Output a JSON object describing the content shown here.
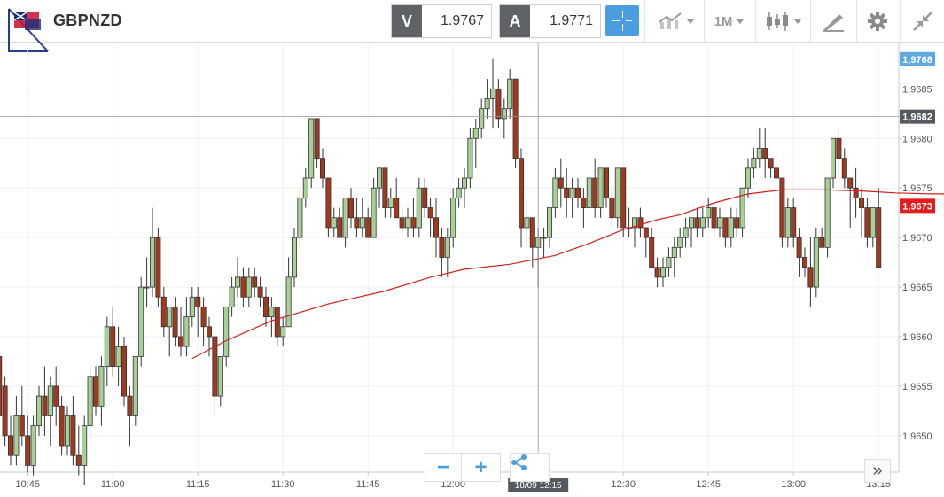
{
  "header": {
    "symbol": "GBPNZD",
    "sell": {
      "tag": "V",
      "price": "1.9767"
    },
    "buy": {
      "tag": "A",
      "price": "1.9771"
    },
    "timeframe": "1M",
    "icons": {
      "chart_type": "line-chart-icon",
      "candles": "candlestick-icon",
      "draw": "pencil-ruler-icon",
      "settings": "gear-icon",
      "collapse": "collapse-arrows-icon",
      "crosshair": "crosshair-icon"
    },
    "accent": "#4a9ee0"
  },
  "controls": {
    "zoom_out": "−",
    "zoom_in": "+",
    "share": "share-icon",
    "more": "»"
  },
  "chart_data": {
    "type": "candlestick",
    "x_ticks": [
      "10:45",
      "11:00",
      "11:15",
      "11:30",
      "11:45",
      "12:00",
      "12:15",
      "12:30",
      "12:45",
      "13:00",
      "13:15"
    ],
    "y_ticks": [
      "1,9685",
      "1,9680",
      "1,9675",
      "1,9670",
      "1,9665",
      "1,9660",
      "1,9655",
      "1,9650"
    ],
    "ylim": [
      1.96465,
      1.96895
    ],
    "bar_minutes": 1,
    "x_start": "10:40",
    "up_color": "#a8cf97",
    "down_color": "#a0391f",
    "ma_color": "#d0201e",
    "crosshair": {
      "time_label": "18/09 12:15",
      "price_label": "1,9682",
      "price": 1.96822,
      "time": "12:15"
    },
    "markers": [
      {
        "label": "1,9768",
        "price": 1.9688,
        "color": "#5fa8e0"
      },
      {
        "label": "1,9673",
        "price": 1.96732,
        "color": "#e01e1e"
      }
    ],
    "candles": [
      [
        1.9658,
        1.9658,
        1.9652,
        1.9652
      ],
      [
        1.9655,
        1.9656,
        1.9649,
        1.965
      ],
      [
        1.965,
        1.9652,
        1.9647,
        1.9648
      ],
      [
        1.9648,
        1.9654,
        1.9647,
        1.9652
      ],
      [
        1.9652,
        1.9655,
        1.9649,
        1.965
      ],
      [
        1.965,
        1.9652,
        1.9646,
        1.9647
      ],
      [
        1.9647,
        1.9652,
        1.9646,
        1.9651
      ],
      [
        1.9651,
        1.9655,
        1.965,
        1.9654
      ],
      [
        1.9654,
        1.9657,
        1.965,
        1.9652
      ],
      [
        1.9652,
        1.9656,
        1.9649,
        1.9655
      ],
      [
        1.9655,
        1.9657,
        1.9651,
        1.9653
      ],
      [
        1.9653,
        1.9654,
        1.9648,
        1.9649
      ],
      [
        1.9649,
        1.9653,
        1.9648,
        1.9652
      ],
      [
        1.9652,
        1.9654,
        1.9647,
        1.9648
      ],
      [
        1.9648,
        1.9651,
        1.9646,
        1.9647
      ],
      [
        1.9647,
        1.9652,
        1.9645,
        1.9651
      ],
      [
        1.9651,
        1.9657,
        1.965,
        1.9656
      ],
      [
        1.9656,
        1.9657,
        1.9652,
        1.9653
      ],
      [
        1.9653,
        1.9658,
        1.9651,
        1.9657
      ],
      [
        1.9657,
        1.9662,
        1.9655,
        1.9661
      ],
      [
        1.9661,
        1.9663,
        1.9656,
        1.9657
      ],
      [
        1.9657,
        1.9661,
        1.9655,
        1.9659
      ],
      [
        1.9659,
        1.966,
        1.9653,
        1.9654
      ],
      [
        1.9654,
        1.9655,
        1.9649,
        1.9652
      ],
      [
        1.9652,
        1.9658,
        1.9651,
        1.9658
      ],
      [
        1.9658,
        1.9666,
        1.9657,
        1.9665
      ],
      [
        1.9665,
        1.9668,
        1.9663,
        1.9665
      ],
      [
        1.9665,
        1.9673,
        1.9664,
        1.967
      ],
      [
        1.967,
        1.9671,
        1.9663,
        1.9664
      ],
      [
        1.9664,
        1.9665,
        1.966,
        1.9661
      ],
      [
        1.9661,
        1.9663,
        1.9658,
        1.9663
      ],
      [
        1.9663,
        1.9664,
        1.9659,
        1.966
      ],
      [
        1.966,
        1.9663,
        1.9658,
        1.9659
      ],
      [
        1.9659,
        1.9664,
        1.9658,
        1.9662
      ],
      [
        1.9662,
        1.9665,
        1.9661,
        1.9664
      ],
      [
        1.9664,
        1.9665,
        1.966,
        1.9663
      ],
      [
        1.9663,
        1.9664,
        1.9659,
        1.9661
      ],
      [
        1.9661,
        1.9662,
        1.9658,
        1.966
      ],
      [
        1.966,
        1.966,
        1.9652,
        1.9654
      ],
      [
        1.9654,
        1.9658,
        1.9653,
        1.9658
      ],
      [
        1.9658,
        1.9663,
        1.9657,
        1.9663
      ],
      [
        1.9663,
        1.9666,
        1.9662,
        1.9665
      ],
      [
        1.9665,
        1.9668,
        1.9664,
        1.9666
      ],
      [
        1.9666,
        1.9667,
        1.9663,
        1.9664
      ],
      [
        1.9664,
        1.9667,
        1.9663,
        1.9666
      ],
      [
        1.9666,
        1.9667,
        1.9664,
        1.9665
      ],
      [
        1.9665,
        1.9666,
        1.9663,
        1.9664
      ],
      [
        1.9664,
        1.9665,
        1.9661,
        1.9662
      ],
      [
        1.9662,
        1.9664,
        1.966,
        1.9663
      ],
      [
        1.9663,
        1.9663,
        1.9659,
        1.966
      ],
      [
        1.966,
        1.9662,
        1.9659,
        1.9661
      ],
      [
        1.9661,
        1.9668,
        1.9661,
        1.9666
      ],
      [
        1.9666,
        1.9671,
        1.9665,
        1.967
      ],
      [
        1.967,
        1.9675,
        1.9669,
        1.9674
      ],
      [
        1.9674,
        1.9677,
        1.9673,
        1.9676
      ],
      [
        1.9676,
        1.9682,
        1.9675,
        1.9682
      ],
      [
        1.9682,
        1.9682,
        1.9677,
        1.9678
      ],
      [
        1.9678,
        1.9679,
        1.9675,
        1.9676
      ],
      [
        1.9676,
        1.9676,
        1.967,
        1.9671
      ],
      [
        1.9671,
        1.9673,
        1.967,
        1.9672
      ],
      [
        1.9672,
        1.9673,
        1.967,
        1.967
      ],
      [
        1.967,
        1.9674,
        1.9669,
        1.9674
      ],
      [
        1.9674,
        1.9675,
        1.9671,
        1.9672
      ],
      [
        1.9672,
        1.9674,
        1.967,
        1.9671
      ],
      [
        1.9671,
        1.9674,
        1.967,
        1.9672
      ],
      [
        1.9672,
        1.9673,
        1.967,
        1.967
      ],
      [
        1.967,
        1.9676,
        1.967,
        1.9675
      ],
      [
        1.9675,
        1.9677,
        1.9673,
        1.9677
      ],
      [
        1.9677,
        1.9677,
        1.9672,
        1.9673
      ],
      [
        1.9673,
        1.9675,
        1.9672,
        1.9674
      ],
      [
        1.9674,
        1.9676,
        1.9672,
        1.9672
      ],
      [
        1.9672,
        1.9673,
        1.967,
        1.9671
      ],
      [
        1.9671,
        1.9673,
        1.967,
        1.9672
      ],
      [
        1.9672,
        1.9674,
        1.967,
        1.9671
      ],
      [
        1.9671,
        1.9676,
        1.967,
        1.9675
      ],
      [
        1.9675,
        1.9676,
        1.9672,
        1.9673
      ],
      [
        1.9673,
        1.9674,
        1.967,
        1.9672
      ],
      [
        1.9672,
        1.9674,
        1.9668,
        1.967
      ],
      [
        1.967,
        1.9671,
        1.9666,
        1.9668
      ],
      [
        1.9668,
        1.9671,
        1.9666,
        1.967
      ],
      [
        1.967,
        1.9675,
        1.9669,
        1.9674
      ],
      [
        1.9674,
        1.9676,
        1.9673,
        1.9675
      ],
      [
        1.9675,
        1.9677,
        1.9673,
        1.9676
      ],
      [
        1.9676,
        1.9681,
        1.9675,
        1.968
      ],
      [
        1.968,
        1.9682,
        1.9677,
        1.9681
      ],
      [
        1.9681,
        1.9684,
        1.968,
        1.9683
      ],
      [
        1.9683,
        1.9686,
        1.9682,
        1.9684
      ],
      [
        1.9684,
        1.9688,
        1.9681,
        1.9685
      ],
      [
        1.9685,
        1.9686,
        1.9681,
        1.9682
      ],
      [
        1.9682,
        1.9684,
        1.968,
        1.9683
      ],
      [
        1.9683,
        1.9687,
        1.9682,
        1.9686
      ],
      [
        1.9686,
        1.9686,
        1.9677,
        1.9678
      ],
      [
        1.9678,
        1.9679,
        1.9669,
        1.9671
      ],
      [
        1.9671,
        1.9674,
        1.9669,
        1.9672
      ],
      [
        1.9672,
        1.9672,
        1.9667,
        1.9669
      ],
      [
        1.9669,
        1.9671,
        1.9665,
        1.967
      ],
      [
        1.967,
        1.9671,
        1.9668,
        1.967
      ],
      [
        1.967,
        1.9673,
        1.9669,
        1.9673
      ],
      [
        1.9673,
        1.9677,
        1.9672,
        1.9676
      ],
      [
        1.9676,
        1.9678,
        1.9673,
        1.9675
      ],
      [
        1.9675,
        1.9677,
        1.9672,
        1.9674
      ],
      [
        1.9674,
        1.9676,
        1.9672,
        1.9675
      ],
      [
        1.9675,
        1.9676,
        1.9673,
        1.9674
      ],
      [
        1.9674,
        1.9675,
        1.9671,
        1.9673
      ],
      [
        1.9673,
        1.9676,
        1.9673,
        1.9676
      ],
      [
        1.9676,
        1.9678,
        1.9672,
        1.9673
      ],
      [
        1.9673,
        1.9677,
        1.9672,
        1.9677
      ],
      [
        1.9677,
        1.9677,
        1.9673,
        1.9674
      ],
      [
        1.9674,
        1.9675,
        1.9671,
        1.9672
      ],
      [
        1.9672,
        1.9677,
        1.9671,
        1.9677
      ],
      [
        1.9677,
        1.9677,
        1.967,
        1.9671
      ],
      [
        1.9671,
        1.9673,
        1.967,
        1.9671
      ],
      [
        1.9671,
        1.9672,
        1.9669,
        1.9672
      ],
      [
        1.9672,
        1.9673,
        1.967,
        1.9671
      ],
      [
        1.9671,
        1.9671,
        1.9668,
        1.967
      ],
      [
        1.967,
        1.9671,
        1.9667,
        1.9667
      ],
      [
        1.9667,
        1.9668,
        1.9665,
        1.9666
      ],
      [
        1.9666,
        1.9668,
        1.9665,
        1.9667
      ],
      [
        1.9667,
        1.9669,
        1.9666,
        1.9668
      ],
      [
        1.9668,
        1.967,
        1.9666,
        1.9669
      ],
      [
        1.9669,
        1.9671,
        1.9668,
        1.967
      ],
      [
        1.967,
        1.9672,
        1.9669,
        1.9671
      ],
      [
        1.9671,
        1.9672,
        1.9669,
        1.9672
      ],
      [
        1.9672,
        1.9673,
        1.967,
        1.9671
      ],
      [
        1.9671,
        1.9673,
        1.967,
        1.9672
      ],
      [
        1.9672,
        1.9674,
        1.9671,
        1.9673
      ],
      [
        1.9673,
        1.9673,
        1.967,
        1.9671
      ],
      [
        1.9671,
        1.9673,
        1.967,
        1.9672
      ],
      [
        1.9672,
        1.9672,
        1.9669,
        1.967
      ],
      [
        1.967,
        1.9673,
        1.9669,
        1.9672
      ],
      [
        1.9672,
        1.9673,
        1.967,
        1.9671
      ],
      [
        1.9671,
        1.9675,
        1.967,
        1.9675
      ],
      [
        1.9675,
        1.9678,
        1.9674,
        1.9677
      ],
      [
        1.9677,
        1.9679,
        1.9676,
        1.9678
      ],
      [
        1.9678,
        1.9681,
        1.9677,
        1.9679
      ],
      [
        1.9679,
        1.9681,
        1.9676,
        1.9678
      ],
      [
        1.9678,
        1.9678,
        1.9676,
        1.9677
      ],
      [
        1.9677,
        1.9677,
        1.9676,
        1.9676
      ],
      [
        1.9676,
        1.9676,
        1.9669,
        1.967
      ],
      [
        1.967,
        1.9674,
        1.9669,
        1.9673
      ],
      [
        1.9673,
        1.9674,
        1.9669,
        1.967
      ],
      [
        1.967,
        1.9671,
        1.9666,
        1.9668
      ],
      [
        1.9668,
        1.9669,
        1.9666,
        1.9667
      ],
      [
        1.9667,
        1.967,
        1.9663,
        1.9665
      ],
      [
        1.9665,
        1.9671,
        1.9664,
        1.967
      ],
      [
        1.967,
        1.9671,
        1.9669,
        1.9669
      ],
      [
        1.9669,
        1.9676,
        1.9668,
        1.9676
      ],
      [
        1.9676,
        1.968,
        1.9675,
        1.968
      ],
      [
        1.968,
        1.9681,
        1.9676,
        1.9678
      ],
      [
        1.9678,
        1.9679,
        1.9675,
        1.9676
      ],
      [
        1.9676,
        1.9676,
        1.9671,
        1.9675
      ],
      [
        1.9675,
        1.9677,
        1.9672,
        1.9674
      ],
      [
        1.9674,
        1.9675,
        1.967,
        1.9673
      ],
      [
        1.9673,
        1.9674,
        1.9669,
        1.967
      ],
      [
        1.967,
        1.9673,
        1.9669,
        1.9673
      ],
      [
        1.9673,
        1.9675,
        1.9667,
        1.9667
      ]
    ],
    "ma": [
      [
        34,
        1.96578
      ],
      [
        40,
        1.96596
      ],
      [
        48,
        1.96616
      ],
      [
        58,
        1.96633
      ],
      [
        68,
        1.96646
      ],
      [
        76,
        1.9666
      ],
      [
        82,
        1.96668
      ],
      [
        90,
        1.96673
      ],
      [
        98,
        1.96682
      ],
      [
        104,
        1.96694
      ],
      [
        110,
        1.96708
      ],
      [
        116,
        1.96718
      ],
      [
        120,
        1.96723
      ],
      [
        126,
        1.96735
      ],
      [
        132,
        1.96744
      ],
      [
        138,
        1.96748
      ],
      [
        146,
        1.96748
      ],
      [
        152,
        1.96747
      ],
      [
        158,
        1.96745
      ],
      [
        164,
        1.96744
      ],
      [
        172,
        1.96744
      ],
      [
        180,
        1.96742
      ],
      [
        190,
        1.96742
      ],
      [
        198,
        1.96744
      ],
      [
        206,
        1.96745
      ],
      [
        214,
        1.96743
      ],
      [
        220,
        1.96737
      ],
      [
        226,
        1.96732
      ],
      [
        232,
        1.96733
      ],
      [
        238,
        1.96735
      ],
      [
        246,
        1.96732
      ],
      [
        252,
        1.9673
      ]
    ]
  }
}
